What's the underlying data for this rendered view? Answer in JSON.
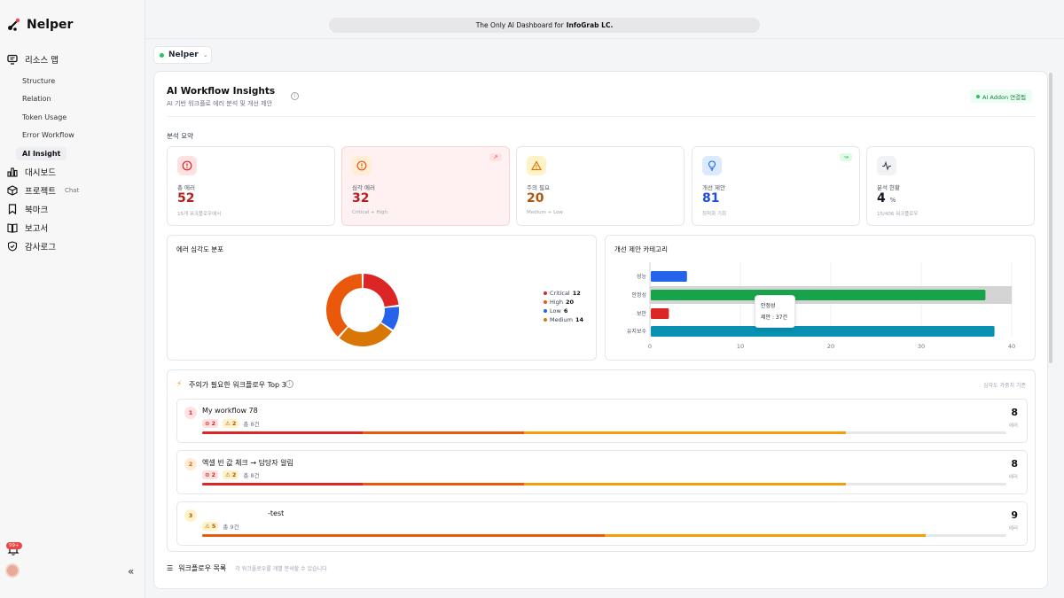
{
  "app": {
    "name": "Nelper"
  },
  "banner": {
    "text": "The Only AI Dashboard for",
    "brand": "InfoGrab LC."
  },
  "sidebar": {
    "resource_map": "리소스 맵",
    "sub_items": [
      "Structure",
      "Relation",
      "Token Usage",
      "Error Workflow",
      "AI Insight"
    ],
    "active_sub": "AI Insight",
    "dashboard": "대시보드",
    "project": "프로젝트",
    "project_tag": "Chat",
    "bookmark": "북마크",
    "report": "보고서",
    "audit_log": "감사로그",
    "notif_badge": "99+",
    "collapse": "«"
  },
  "project_select": {
    "value": "Nelper"
  },
  "header": {
    "title": "AI Workflow Insights",
    "subtitle": "AI 기반 워크플로 에러 분석 및 개선 제안",
    "addon": "AI Addon 연결됨"
  },
  "summary": {
    "label": "분석 요약",
    "cards": [
      {
        "label": "총 에러",
        "value": "52",
        "sub": "15개 워크플로우에서",
        "color": "#b91c1c"
      },
      {
        "label": "심각 에러",
        "value": "32",
        "sub": "Critical + High",
        "color": "#b91c1c"
      },
      {
        "label": "주의 필요",
        "value": "20",
        "sub": "Medium + Low",
        "color": "#b45309"
      },
      {
        "label": "개선 제안",
        "value": "81",
        "sub": "최적화 기회",
        "color": "#1d4ed8"
      },
      {
        "label": "분석 현황",
        "value": "4",
        "unit": "%",
        "sub": "15/406 워크플로우",
        "color": "#111827"
      }
    ]
  },
  "severity": {
    "title": "에러 심각도 분포",
    "legend": [
      {
        "name": "Critical",
        "value": "12",
        "color": "#dc2626"
      },
      {
        "name": "High",
        "value": "20",
        "color": "#ea580c"
      },
      {
        "name": "Low",
        "value": "6",
        "color": "#2563eb"
      },
      {
        "name": "Medium",
        "value": "14",
        "color": "#d97706"
      }
    ]
  },
  "improve": {
    "title": "개선 제안 카테고리",
    "tooltip_title": "안정성",
    "tooltip_value": "제안 : 37건"
  },
  "chart_data": [
    {
      "type": "pie",
      "title": "에러 심각도 분포",
      "categories": [
        "Critical",
        "Low",
        "Medium",
        "High"
      ],
      "values": [
        12,
        6,
        14,
        20
      ],
      "colors": [
        "#dc2626",
        "#2563eb",
        "#d97706",
        "#ea580c"
      ]
    },
    {
      "type": "bar",
      "orientation": "horizontal",
      "title": "개선 제안 카테고리",
      "categories": [
        "성능",
        "안정성",
        "보안",
        "유지보수"
      ],
      "values": [
        4,
        37,
        2,
        38
      ],
      "colors": [
        "#2563eb",
        "#16a34a",
        "#dc2626",
        "#0891b2"
      ],
      "xlim": [
        0,
        40
      ],
      "xticks": [
        "0",
        "10",
        "20",
        "30",
        "40"
      ],
      "highlight": "안정성"
    }
  ],
  "top3": {
    "title": "주의가 필요한 워크플로우 Top 3",
    "right_label": "심각도 가중치 기준",
    "items": [
      {
        "rank": "1",
        "name": "My workflow 78",
        "critical": "2",
        "warn": "2",
        "total": "총 8건",
        "count": "8",
        "unit": "에러",
        "bar": [
          {
            "c": "#dc2626",
            "w": 20
          },
          {
            "c": "#ea580c",
            "w": 20
          },
          {
            "c": "#f59e0b",
            "w": 40
          }
        ]
      },
      {
        "rank": "2",
        "name": "엑셀 빈 값 체크 → 담당자 알림",
        "critical": "2",
        "warn": "2",
        "total": "총 8건",
        "count": "8",
        "unit": "에러",
        "bar": [
          {
            "c": "#dc2626",
            "w": 20
          },
          {
            "c": "#ea580c",
            "w": 20
          },
          {
            "c": "#f59e0b",
            "w": 40
          }
        ]
      },
      {
        "rank": "3",
        "name": "-test",
        "critical": "",
        "warn": "5",
        "total": "총 9건",
        "count": "9",
        "unit": "에러",
        "bar": [
          {
            "c": "#ea580c",
            "w": 50
          },
          {
            "c": "#f59e0b",
            "w": 40
          }
        ]
      }
    ]
  },
  "list": {
    "title": "워크플로우 목록",
    "hint": "각 워크플로우를 개별 분석할 수 있습니다"
  }
}
